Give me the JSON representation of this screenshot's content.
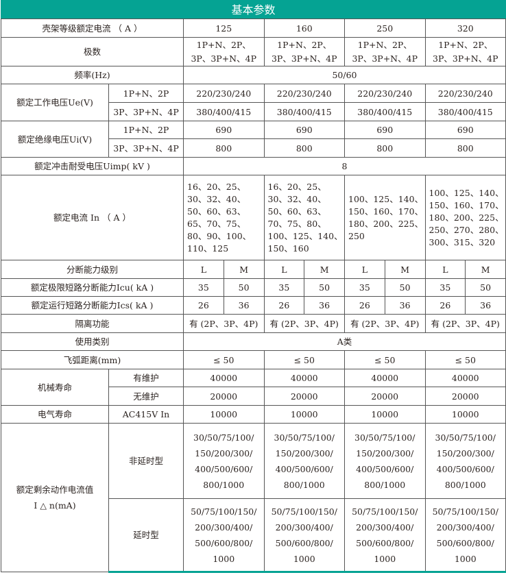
{
  "header": {
    "title": "基本参数"
  },
  "frame": {
    "label": "壳架等级额定电流 （ A ）",
    "values": [
      "125",
      "160",
      "250",
      "320"
    ]
  },
  "poles": {
    "label": "极数",
    "line1": "1P+N、2P、",
    "line2": "3P、3P+N、4P"
  },
  "freq": {
    "label": "频率(Hz)",
    "value": "50/60"
  },
  "ue": {
    "label": "额定工作电压Ue(V)",
    "sub1": "1P+N、2P",
    "sub2": "3P、3P+N、4P",
    "v1": "220/230/240",
    "v2": "380/400/415"
  },
  "ui": {
    "label": "额定绝缘电压Ui(V)",
    "sub1": "1P+N、2P",
    "sub2": "3P、3P+N、4P",
    "v1": "690",
    "v2": "800"
  },
  "uimp": {
    "label": "额定冲击耐受电压Uimp( kV )",
    "value": "8"
  },
  "in": {
    "label": "额定电流 In （ A ）",
    "values": [
      "16、20、25、\n30、32、40、\n50、60、63、\n65、70、75、\n80、90、100、\n110、125",
      "16、20、25、\n30、32、40、\n50、60、63、\n70、75、80、\n100、125、140、\n150、160",
      "100、125、140、\n150、160、170、\n180、200、225、\n250",
      "100、125、140、\n150、160、170、\n180、200、225、\n250、270、280、\n300、315、320"
    ]
  },
  "breaking": {
    "label": "分断能力级别",
    "levels": [
      "L",
      "M"
    ]
  },
  "icu": {
    "label": "额定极限短路分断能力Icu( kA )",
    "values": [
      "35",
      "50"
    ]
  },
  "ics": {
    "label": "额定运行短路分断能力Ics( kA )",
    "values": [
      "26",
      "36"
    ]
  },
  "isolation": {
    "label": "隔离功能",
    "value": "有 (2P、3P、4P)"
  },
  "category": {
    "label": "使用类别",
    "value": "A类"
  },
  "arc": {
    "label": "飞弧距离(mm)",
    "value": "≤ 50"
  },
  "mech": {
    "label": "机械寿命",
    "sub1": "有维护",
    "sub2": "无维护",
    "v1": "40000",
    "v2": "20000"
  },
  "elec": {
    "label": "电气寿命",
    "sub": "AC415V In",
    "value": "10000"
  },
  "residual": {
    "label": "额定剩余动作电流值",
    "label2": "I △ n(mA)",
    "sub1": "非延时型",
    "sub2": "延时型",
    "v1": "30/50/75/100/\n150/200/300/\n400/500/600/\n800/1000",
    "v2": "50/75/100/150/\n200/300/400/\n500/600/800/\n1000"
  }
}
